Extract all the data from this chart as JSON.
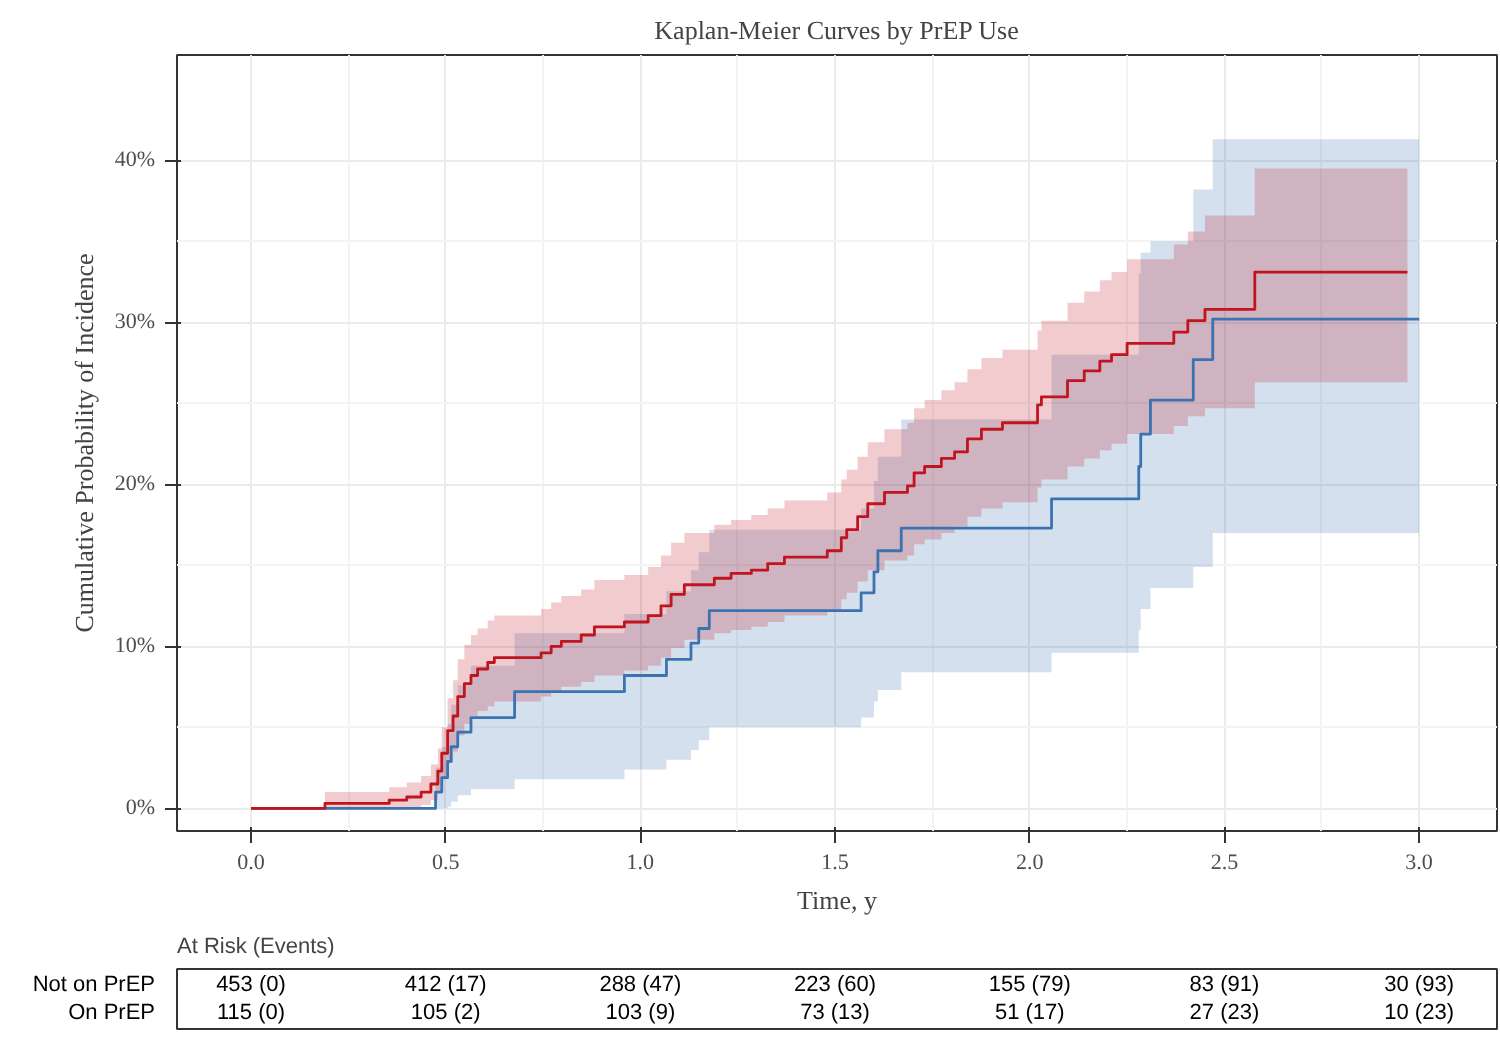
{
  "chart_data": [
    {
      "type": "step",
      "title": "Kaplan-Meier Curves by PrEP Use",
      "xlabel": "Time, y",
      "ylabel": "Cumulative Probability of Incidence",
      "xlim": [
        -0.19,
        3.2
      ],
      "ylim": [
        -1.4,
        46.5
      ],
      "xticks": [
        {
          "value": 0,
          "label": "0.0"
        },
        0.5,
        {
          "value": 1,
          "label": "1.0"
        },
        1.5,
        {
          "value": 2,
          "label": "2.0"
        },
        2.5,
        {
          "value": 3,
          "label": "3.0"
        }
      ],
      "yticks": [
        {
          "value": 0,
          "label": "0%"
        },
        {
          "value": 10,
          "label": "10%"
        },
        {
          "value": 20,
          "label": "20%"
        },
        {
          "value": 30,
          "label": "30%"
        },
        {
          "value": 40,
          "label": "40%"
        }
      ],
      "grid": true,
      "line_style": "solid",
      "marker": "none",
      "series": [
        {
          "color": "#3b73b0",
          "x": [
            0,
            0.474,
            0.49,
            0.505,
            0.514,
            0.531,
            0.565,
            0.677,
            0.959,
            1.067,
            1.13,
            1.15,
            1.177,
            1.567,
            1.6,
            1.61,
            1.67,
            2.056,
            2.28,
            2.285,
            2.31,
            2.42,
            2.47,
            3.0
          ],
          "values": [
            0,
            1.0,
            1.9,
            2.9,
            3.8,
            4.7,
            5.6,
            7.2,
            8.2,
            9.2,
            10.2,
            11.1,
            12.2,
            13.3,
            14.6,
            15.9,
            17.3,
            19.1,
            21.1,
            23.1,
            25.2,
            27.7,
            30.2,
            30.2
          ],
          "lower": [
            0,
            0,
            0,
            0.1,
            0.4,
            0.8,
            1.2,
            1.8,
            2.4,
            3.0,
            3.6,
            4.2,
            5.0,
            5.6,
            6.6,
            7.3,
            8.4,
            9.6,
            11.0,
            12.3,
            13.6,
            14.9,
            17.0,
            17.0
          ],
          "upper": [
            0,
            2.5,
            3.8,
            5.2,
            6.4,
            7.6,
            8.8,
            10.8,
            12.0,
            13.4,
            14.7,
            15.8,
            17.2,
            18.5,
            20.2,
            21.7,
            24.0,
            28.0,
            33.0,
            34.3,
            35.0,
            38.2,
            41.3,
            41.3
          ]
        },
        {
          "color": "#c0141e",
          "x": [
            0,
            0.19,
            0.355,
            0.4,
            0.437,
            0.462,
            0.48,
            0.49,
            0.505,
            0.519,
            0.531,
            0.548,
            0.565,
            0.582,
            0.608,
            0.625,
            0.745,
            0.771,
            0.797,
            0.848,
            0.882,
            0.959,
            1.02,
            1.053,
            1.079,
            1.113,
            1.19,
            1.233,
            1.285,
            1.327,
            1.37,
            1.48,
            1.516,
            1.53,
            1.558,
            1.584,
            1.627,
            1.686,
            1.703,
            1.73,
            1.773,
            1.807,
            1.84,
            1.876,
            1.93,
            2.02,
            2.03,
            2.097,
            2.14,
            2.18,
            2.21,
            2.25,
            2.37,
            2.406,
            2.45,
            2.578,
            2.97
          ],
          "values": [
            0,
            0.3,
            0.5,
            0.7,
            1.0,
            1.5,
            2.3,
            3.4,
            4.8,
            5.7,
            6.9,
            7.7,
            8.2,
            8.6,
            9.0,
            9.3,
            9.6,
            10.0,
            10.3,
            10.7,
            11.2,
            11.5,
            11.9,
            12.5,
            13.2,
            13.8,
            14.2,
            14.5,
            14.7,
            15.1,
            15.5,
            15.9,
            16.7,
            17.2,
            18.0,
            18.8,
            19.5,
            19.9,
            20.7,
            21.1,
            21.6,
            22.0,
            22.8,
            23.4,
            23.8,
            24.9,
            25.4,
            26.4,
            27.0,
            27.6,
            28.0,
            28.7,
            29.4,
            30.1,
            30.8,
            33.1,
            33.1
          ],
          "lower": [
            0,
            0,
            0,
            0,
            0.2,
            0.5,
            1.0,
            1.8,
            2.8,
            3.5,
            4.5,
            5.2,
            5.7,
            6.0,
            6.3,
            6.6,
            6.9,
            7.2,
            7.5,
            7.8,
            8.2,
            8.5,
            8.8,
            9.3,
            9.9,
            10.4,
            10.8,
            11.0,
            11.2,
            11.5,
            11.9,
            12.2,
            12.9,
            13.3,
            14.0,
            14.7,
            15.3,
            15.6,
            16.3,
            16.6,
            17.0,
            17.4,
            18.0,
            18.5,
            18.9,
            19.8,
            20.3,
            21.1,
            21.6,
            22.1,
            22.5,
            23.1,
            23.6,
            24.2,
            24.7,
            26.3,
            26.3
          ],
          "upper": [
            0,
            1.0,
            1.3,
            1.6,
            2.0,
            2.7,
            3.7,
            5.0,
            6.8,
            7.9,
            9.2,
            10.1,
            10.7,
            11.1,
            11.6,
            11.9,
            12.3,
            12.7,
            13.1,
            13.5,
            14.1,
            14.4,
            14.9,
            15.6,
            16.4,
            17.0,
            17.5,
            17.8,
            18.1,
            18.5,
            19.0,
            19.5,
            20.3,
            20.9,
            21.7,
            22.6,
            23.4,
            23.8,
            24.7,
            25.2,
            25.8,
            26.3,
            27.1,
            27.8,
            28.3,
            29.5,
            30.1,
            31.2,
            31.9,
            32.6,
            33.1,
            33.9,
            34.8,
            35.6,
            36.6,
            39.5,
            39.5
          ]
        }
      ]
    },
    {
      "type": "other",
      "title": "At Risk (Events)",
      "y_categories": [
        "Not on PrEP",
        "On PrEP"
      ],
      "cell_labels": [
        [
          "453 (0)",
          "412 (17)",
          "288 (47)",
          "223 (60)",
          "155 (79)",
          "83 (91)",
          "30 (93)"
        ],
        [
          "115 (0)",
          "105 (2)",
          "103 (9)",
          "73 (13)",
          "51 (17)",
          "27 (23)",
          "10 (23)"
        ]
      ]
    }
  ]
}
